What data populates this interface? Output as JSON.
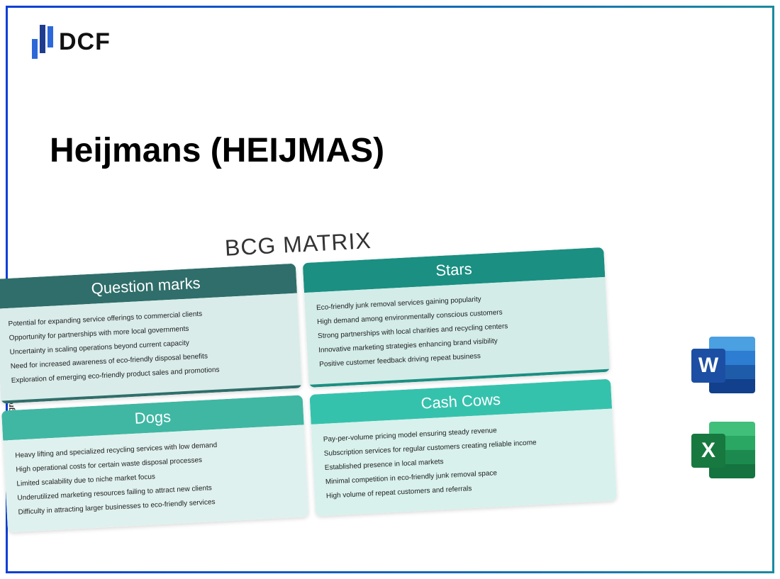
{
  "logo": {
    "text": "DCF"
  },
  "title": "Heijmans (HEIJMAS)",
  "axis_label": "Market growth",
  "matrix": {
    "title": "BCG MATRIX",
    "question_marks": {
      "header": "Question marks",
      "items": [
        "Potential for expanding service offerings to commercial clients",
        "Opportunity for partnerships with more local governments",
        "Uncertainty in scaling operations beyond current capacity",
        "Need for increased awareness of eco-friendly disposal benefits",
        "Exploration of emerging eco-friendly product sales and promotions"
      ]
    },
    "stars": {
      "header": "Stars",
      "items": [
        "Eco-friendly junk removal services gaining popularity",
        "High demand among environmentally conscious customers",
        "Strong partnerships with local charities and recycling centers",
        "Innovative marketing strategies enhancing brand visibility",
        "Positive customer feedback driving repeat business"
      ]
    },
    "dogs": {
      "header": "Dogs",
      "items": [
        "Heavy lifting and specialized recycling services with low demand",
        "High operational costs for certain waste disposal processes",
        "Limited scalability due to niche market focus",
        "Underutilized marketing resources failing to attract new clients",
        "Difficulty in attracting larger businesses to eco-friendly services"
      ]
    },
    "cash_cows": {
      "header": "Cash Cows",
      "items": [
        "Pay-per-volume pricing model ensuring steady revenue",
        "Subscription services for regular customers creating reliable income",
        "Established presence in local markets",
        "Minimal competition in eco-friendly junk removal space",
        "High volume of repeat customers and referrals"
      ]
    }
  },
  "apps": {
    "word_letter": "W",
    "excel_letter": "X"
  },
  "colors": {
    "frame_start": "#0b3fd6",
    "frame_end": "#1a8aa0",
    "qm_header": "#2f6e6a",
    "stars_header": "#1a8f82",
    "dogs_header": "#3fb7a3",
    "cows_header": "#35c2ad"
  }
}
